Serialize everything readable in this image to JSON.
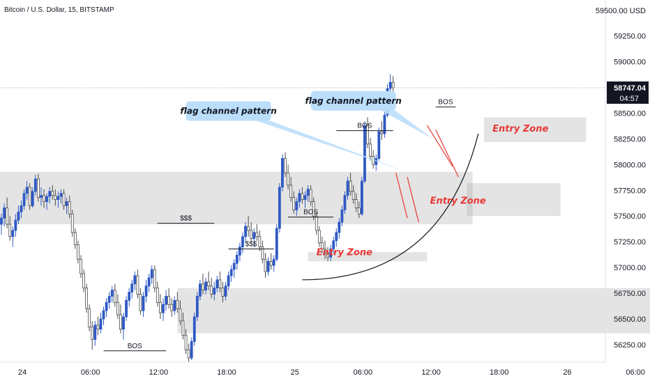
{
  "header": {
    "symbol": "Bitcoin / U.S. Dollar, 15, BITSTAMP"
  },
  "chart_data": {
    "type": "candlestick",
    "currency": "USD",
    "price_labels": [
      "59500.00",
      "59250.00",
      "59000.00",
      "58750.00",
      "58500.00",
      "58250.00",
      "58000.00",
      "57750.00",
      "57500.00",
      "57250.00",
      "57000.00",
      "56750.00",
      "56500.00",
      "56250.00"
    ],
    "ylim": [
      56080,
      59600
    ],
    "price_ticks": [
      59250,
      59000,
      58500,
      58250,
      58000,
      57750,
      57500,
      57250,
      57000,
      56750,
      56500,
      56250
    ],
    "current_price": {
      "value": 58747.04,
      "label": "58747.04",
      "countdown": "04:57"
    },
    "time_labels": [
      {
        "label": "24",
        "t": 0
      },
      {
        "label": "06:00",
        "t": 24
      },
      {
        "label": "12:00",
        "t": 48
      },
      {
        "label": "18:00",
        "t": 72
      },
      {
        "label": "25",
        "t": 96
      },
      {
        "label": "06:00",
        "t": 120
      },
      {
        "label": "12:00",
        "t": 144
      },
      {
        "label": "18:00",
        "t": 168
      },
      {
        "label": "26",
        "t": 192
      },
      {
        "label": "06:00",
        "t": 216
      }
    ],
    "zones": [
      {
        "t0": -6,
        "t1": 166,
        "lo": 57420,
        "hi": 57930
      },
      {
        "t0": 62,
        "t1": 240,
        "lo": 56360,
        "hi": 56800
      },
      {
        "t0": 164,
        "t1": 197,
        "lo": 57500,
        "hi": 57820
      },
      {
        "t0": 170,
        "t1": 206,
        "lo": 58220,
        "hi": 58460
      },
      {
        "t0": 108,
        "t1": 150,
        "lo": 57060,
        "hi": 57150
      }
    ],
    "levels": [
      {
        "label": "BOS",
        "t0": 36,
        "t1": 58,
        "price": 56190
      },
      {
        "label": "$$$",
        "t0": 55,
        "t1": 75,
        "price": 57430
      },
      {
        "label": "$$$",
        "t0": 80,
        "t1": 96,
        "price": 57180
      },
      {
        "label": "BOS",
        "t0": 101,
        "t1": 117,
        "price": 57490
      },
      {
        "label": "BOS",
        "t0": 118,
        "t1": 138,
        "price": 58330
      },
      {
        "label": "BOS",
        "t0": 153,
        "t1": 160,
        "price": 58560
      }
    ],
    "entry_zones": [
      {
        "label": "Entry Zone",
        "t": 111,
        "price": 57120
      },
      {
        "label": "Entry Zone",
        "t": 151,
        "price": 57620
      },
      {
        "label": "Entry Zone",
        "t": 173,
        "price": 58320
      }
    ],
    "callouts": [
      {
        "label": "flag channel pattern",
        "t": 80,
        "price": 58520
      },
      {
        "label": "flag channel pattern",
        "t": 124,
        "price": 58620
      }
    ],
    "candles": [
      {
        "o": 57420,
        "h": 57520,
        "l": 57320,
        "c": 57480
      },
      {
        "o": 57480,
        "h": 57620,
        "l": 57400,
        "c": 57580
      },
      {
        "o": 57580,
        "h": 57680,
        "l": 57380,
        "c": 57420
      },
      {
        "o": 57420,
        "h": 57500,
        "l": 57260,
        "c": 57300
      },
      {
        "o": 57300,
        "h": 57400,
        "l": 57200,
        "c": 57360
      },
      {
        "o": 57360,
        "h": 57520,
        "l": 57300,
        "c": 57460
      },
      {
        "o": 57460,
        "h": 57600,
        "l": 57420,
        "c": 57540
      },
      {
        "o": 57540,
        "h": 57650,
        "l": 57480,
        "c": 57600
      },
      {
        "o": 57600,
        "h": 57760,
        "l": 57560,
        "c": 57720
      },
      {
        "o": 57720,
        "h": 57840,
        "l": 57660,
        "c": 57780
      },
      {
        "o": 57780,
        "h": 57820,
        "l": 57560,
        "c": 57600
      },
      {
        "o": 57600,
        "h": 57780,
        "l": 57580,
        "c": 57740
      },
      {
        "o": 57740,
        "h": 57900,
        "l": 57700,
        "c": 57860
      },
      {
        "o": 57860,
        "h": 57910,
        "l": 57640,
        "c": 57680
      },
      {
        "o": 57680,
        "h": 57780,
        "l": 57600,
        "c": 57700
      },
      {
        "o": 57700,
        "h": 57760,
        "l": 57580,
        "c": 57640
      },
      {
        "o": 57640,
        "h": 57720,
        "l": 57560,
        "c": 57690
      },
      {
        "o": 57690,
        "h": 57780,
        "l": 57620,
        "c": 57740
      },
      {
        "o": 57740,
        "h": 57800,
        "l": 57660,
        "c": 57700
      },
      {
        "o": 57700,
        "h": 57760,
        "l": 57600,
        "c": 57660
      },
      {
        "o": 57660,
        "h": 57740,
        "l": 57580,
        "c": 57690
      },
      {
        "o": 57690,
        "h": 57760,
        "l": 57620,
        "c": 57720
      },
      {
        "o": 57720,
        "h": 57760,
        "l": 57560,
        "c": 57600
      },
      {
        "o": 57600,
        "h": 57680,
        "l": 57520,
        "c": 57640
      },
      {
        "o": 57640,
        "h": 57700,
        "l": 57480,
        "c": 57520
      },
      {
        "o": 57520,
        "h": 57560,
        "l": 57300,
        "c": 57340
      },
      {
        "o": 57340,
        "h": 57380,
        "l": 57180,
        "c": 57220
      },
      {
        "o": 57220,
        "h": 57260,
        "l": 57040,
        "c": 57080
      },
      {
        "o": 57080,
        "h": 57120,
        "l": 56900,
        "c": 56940
      },
      {
        "o": 56940,
        "h": 56980,
        "l": 56760,
        "c": 56800
      },
      {
        "o": 56800,
        "h": 56840,
        "l": 56560,
        "c": 56600
      },
      {
        "o": 56600,
        "h": 56640,
        "l": 56380,
        "c": 56420
      },
      {
        "o": 56420,
        "h": 56480,
        "l": 56200,
        "c": 56300
      },
      {
        "o": 56300,
        "h": 56480,
        "l": 56240,
        "c": 56440
      },
      {
        "o": 56440,
        "h": 56520,
        "l": 56340,
        "c": 56400
      },
      {
        "o": 56400,
        "h": 56560,
        "l": 56360,
        "c": 56500
      },
      {
        "o": 56500,
        "h": 56620,
        "l": 56440,
        "c": 56580
      },
      {
        "o": 56580,
        "h": 56700,
        "l": 56520,
        "c": 56660
      },
      {
        "o": 56660,
        "h": 56760,
        "l": 56600,
        "c": 56720
      },
      {
        "o": 56720,
        "h": 56820,
        "l": 56660,
        "c": 56780
      },
      {
        "o": 56780,
        "h": 56840,
        "l": 56620,
        "c": 56660
      },
      {
        "o": 56660,
        "h": 56740,
        "l": 56500,
        "c": 56540
      },
      {
        "o": 56540,
        "h": 56640,
        "l": 56360,
        "c": 56400
      },
      {
        "o": 56400,
        "h": 56560,
        "l": 56300,
        "c": 56520
      },
      {
        "o": 56520,
        "h": 56720,
        "l": 56480,
        "c": 56680
      },
      {
        "o": 56680,
        "h": 56800,
        "l": 56620,
        "c": 56760
      },
      {
        "o": 56760,
        "h": 56880,
        "l": 56700,
        "c": 56840
      },
      {
        "o": 56840,
        "h": 56960,
        "l": 56780,
        "c": 56920
      },
      {
        "o": 56920,
        "h": 56980,
        "l": 56700,
        "c": 56740
      },
      {
        "o": 56740,
        "h": 56800,
        "l": 56540,
        "c": 56580
      },
      {
        "o": 56580,
        "h": 56760,
        "l": 56520,
        "c": 56720
      },
      {
        "o": 56720,
        "h": 56880,
        "l": 56660,
        "c": 56820
      },
      {
        "o": 56820,
        "h": 56940,
        "l": 56760,
        "c": 56900
      },
      {
        "o": 56900,
        "h": 57020,
        "l": 56840,
        "c": 56980
      },
      {
        "o": 56980,
        "h": 57020,
        "l": 56760,
        "c": 56800
      },
      {
        "o": 56800,
        "h": 56860,
        "l": 56620,
        "c": 56660
      },
      {
        "o": 56660,
        "h": 56740,
        "l": 56500,
        "c": 56560
      },
      {
        "o": 56560,
        "h": 56700,
        "l": 56480,
        "c": 56640
      },
      {
        "o": 56640,
        "h": 56780,
        "l": 56580,
        "c": 56720
      },
      {
        "o": 56720,
        "h": 56800,
        "l": 56600,
        "c": 56640
      },
      {
        "o": 56640,
        "h": 56700,
        "l": 56520,
        "c": 56580
      },
      {
        "o": 56580,
        "h": 56720,
        "l": 56540,
        "c": 56680
      },
      {
        "o": 56680,
        "h": 56760,
        "l": 56560,
        "c": 56600
      },
      {
        "o": 56600,
        "h": 56680,
        "l": 56440,
        "c": 56480
      },
      {
        "o": 56480,
        "h": 56560,
        "l": 56300,
        "c": 56340
      },
      {
        "o": 56340,
        "h": 56400,
        "l": 56160,
        "c": 56200
      },
      {
        "o": 56200,
        "h": 56260,
        "l": 56080,
        "c": 56120
      },
      {
        "o": 56120,
        "h": 56320,
        "l": 56100,
        "c": 56280
      },
      {
        "o": 56280,
        "h": 56560,
        "l": 56240,
        "c": 56520
      },
      {
        "o": 56520,
        "h": 56760,
        "l": 56480,
        "c": 56720
      },
      {
        "o": 56720,
        "h": 56880,
        "l": 56680,
        "c": 56840
      },
      {
        "o": 56840,
        "h": 56940,
        "l": 56740,
        "c": 56780
      },
      {
        "o": 56780,
        "h": 56900,
        "l": 56740,
        "c": 56860
      },
      {
        "o": 56860,
        "h": 56960,
        "l": 56780,
        "c": 56820
      },
      {
        "o": 56820,
        "h": 56900,
        "l": 56700,
        "c": 56740
      },
      {
        "o": 56740,
        "h": 56860,
        "l": 56680,
        "c": 56800
      },
      {
        "o": 56800,
        "h": 56920,
        "l": 56760,
        "c": 56880
      },
      {
        "o": 56880,
        "h": 56960,
        "l": 56760,
        "c": 56800
      },
      {
        "o": 56800,
        "h": 56860,
        "l": 56660,
        "c": 56720
      },
      {
        "o": 56720,
        "h": 56860,
        "l": 56680,
        "c": 56820
      },
      {
        "o": 56820,
        "h": 56960,
        "l": 56780,
        "c": 56920
      },
      {
        "o": 56920,
        "h": 57020,
        "l": 56860,
        "c": 56980
      },
      {
        "o": 56980,
        "h": 57080,
        "l": 56900,
        "c": 57040
      },
      {
        "o": 57040,
        "h": 57160,
        "l": 56980,
        "c": 57120
      },
      {
        "o": 57120,
        "h": 57240,
        "l": 57060,
        "c": 57200
      },
      {
        "o": 57200,
        "h": 57340,
        "l": 57140,
        "c": 57300
      },
      {
        "o": 57300,
        "h": 57440,
        "l": 57240,
        "c": 57400
      },
      {
        "o": 57400,
        "h": 57500,
        "l": 57300,
        "c": 57360
      },
      {
        "o": 57360,
        "h": 57440,
        "l": 57240,
        "c": 57280
      },
      {
        "o": 57280,
        "h": 57380,
        "l": 57200,
        "c": 57340
      },
      {
        "o": 57340,
        "h": 57420,
        "l": 57260,
        "c": 57300
      },
      {
        "o": 57300,
        "h": 57360,
        "l": 57160,
        "c": 57200
      },
      {
        "o": 57200,
        "h": 57260,
        "l": 57040,
        "c": 57080
      },
      {
        "o": 57080,
        "h": 57140,
        "l": 56900,
        "c": 56960
      },
      {
        "o": 56960,
        "h": 57100,
        "l": 56920,
        "c": 57060
      },
      {
        "o": 57060,
        "h": 57140,
        "l": 56980,
        "c": 57020
      },
      {
        "o": 57020,
        "h": 57120,
        "l": 56960,
        "c": 57080
      },
      {
        "o": 57080,
        "h": 57420,
        "l": 57060,
        "c": 57380
      },
      {
        "o": 57380,
        "h": 57820,
        "l": 57340,
        "c": 57780
      },
      {
        "o": 57780,
        "h": 58100,
        "l": 57740,
        "c": 58060
      },
      {
        "o": 58060,
        "h": 58120,
        "l": 57880,
        "c": 57920
      },
      {
        "o": 57920,
        "h": 58000,
        "l": 57760,
        "c": 57800
      },
      {
        "o": 57800,
        "h": 57880,
        "l": 57640,
        "c": 57680
      },
      {
        "o": 57680,
        "h": 57740,
        "l": 57520,
        "c": 57560
      },
      {
        "o": 57560,
        "h": 57680,
        "l": 57500,
        "c": 57640
      },
      {
        "o": 57640,
        "h": 57760,
        "l": 57580,
        "c": 57720
      },
      {
        "o": 57720,
        "h": 57780,
        "l": 57620,
        "c": 57660
      },
      {
        "o": 57660,
        "h": 57740,
        "l": 57580,
        "c": 57700
      },
      {
        "o": 57700,
        "h": 57800,
        "l": 57640,
        "c": 57760
      },
      {
        "o": 57760,
        "h": 57800,
        "l": 57600,
        "c": 57640
      },
      {
        "o": 57640,
        "h": 57680,
        "l": 57460,
        "c": 57500
      },
      {
        "o": 57500,
        "h": 57540,
        "l": 57320,
        "c": 57360
      },
      {
        "o": 57360,
        "h": 57400,
        "l": 57200,
        "c": 57240
      },
      {
        "o": 57240,
        "h": 57300,
        "l": 57140,
        "c": 57180
      },
      {
        "o": 57180,
        "h": 57260,
        "l": 57080,
        "c": 57140
      },
      {
        "o": 57140,
        "h": 57200,
        "l": 57060,
        "c": 57100
      },
      {
        "o": 57100,
        "h": 57220,
        "l": 57060,
        "c": 57180
      },
      {
        "o": 57180,
        "h": 57300,
        "l": 57140,
        "c": 57260
      },
      {
        "o": 57260,
        "h": 57380,
        "l": 57200,
        "c": 57340
      },
      {
        "o": 57340,
        "h": 57480,
        "l": 57280,
        "c": 57440
      },
      {
        "o": 57440,
        "h": 57600,
        "l": 57400,
        "c": 57560
      },
      {
        "o": 57560,
        "h": 57740,
        "l": 57520,
        "c": 57700
      },
      {
        "o": 57700,
        "h": 57880,
        "l": 57660,
        "c": 57840
      },
      {
        "o": 57840,
        "h": 57920,
        "l": 57700,
        "c": 57740
      },
      {
        "o": 57740,
        "h": 57800,
        "l": 57620,
        "c": 57660
      },
      {
        "o": 57660,
        "h": 57720,
        "l": 57540,
        "c": 57580
      },
      {
        "o": 57580,
        "h": 57640,
        "l": 57480,
        "c": 57520
      },
      {
        "o": 57520,
        "h": 57880,
        "l": 57500,
        "c": 57840
      },
      {
        "o": 57840,
        "h": 58420,
        "l": 57820,
        "c": 58380
      },
      {
        "o": 58380,
        "h": 58460,
        "l": 58160,
        "c": 58200
      },
      {
        "o": 58200,
        "h": 58260,
        "l": 58040,
        "c": 58080
      },
      {
        "o": 58080,
        "h": 58140,
        "l": 57960,
        "c": 58000
      },
      {
        "o": 58000,
        "h": 58100,
        "l": 57940,
        "c": 58060
      },
      {
        "o": 58060,
        "h": 58360,
        "l": 58040,
        "c": 58320
      },
      {
        "o": 58320,
        "h": 58420,
        "l": 58240,
        "c": 58300
      },
      {
        "o": 58300,
        "h": 58520,
        "l": 58260,
        "c": 58480
      },
      {
        "o": 58480,
        "h": 58780,
        "l": 58460,
        "c": 58740
      },
      {
        "o": 58740,
        "h": 58880,
        "l": 58680,
        "c": 58800
      },
      {
        "o": 58800,
        "h": 58860,
        "l": 58700,
        "c": 58747
      }
    ]
  }
}
